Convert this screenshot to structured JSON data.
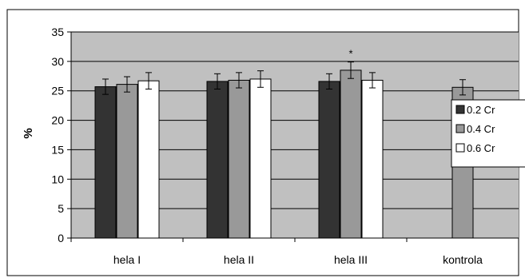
{
  "chart_data": {
    "type": "bar",
    "ylabel": "%",
    "ylim": [
      0,
      35
    ],
    "yticks": [
      "0",
      "5",
      "10",
      "15",
      "20",
      "25",
      "30",
      "35"
    ],
    "categories": [
      "hela I",
      "hela II",
      "hela III",
      "kontrola"
    ],
    "series": [
      {
        "name": "0.2 Cr",
        "color": "#333333",
        "values": [
          25.7,
          26.6,
          26.6,
          null
        ],
        "errors": [
          1.3,
          1.3,
          1.3,
          null
        ]
      },
      {
        "name": "0.4 Cr",
        "color": "#999999",
        "values": [
          26.1,
          26.8,
          28.5,
          25.6
        ],
        "errors": [
          1.3,
          1.3,
          1.4,
          1.3
        ]
      },
      {
        "name": "0.6 Cr",
        "color": "#ffffff",
        "values": [
          26.7,
          27.0,
          26.8,
          null
        ],
        "errors": [
          1.4,
          1.4,
          1.3,
          null
        ]
      }
    ],
    "annotations": [
      {
        "text": "*",
        "category": "hela III",
        "series": "0.4 Cr"
      }
    ],
    "grid": true,
    "plot_background": "#c0c0c0",
    "legend_position": "right"
  }
}
